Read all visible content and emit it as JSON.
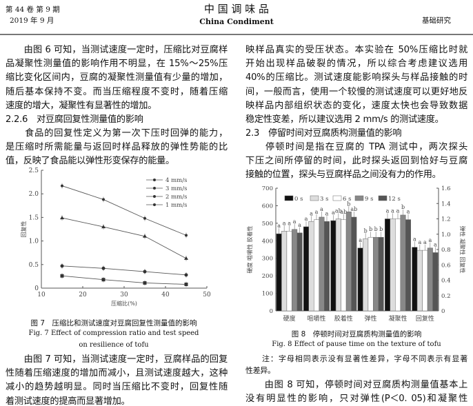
{
  "header": {
    "volume": "第 44 卷 第 9 期",
    "date": "2019 年 9 月",
    "journal_cn": "中 国 调 味 品",
    "journal_en": "China Condiment",
    "section": "基础研究"
  },
  "left": {
    "para1": [
      "　　由图 6 可知，当测试速度一定时，压缩比对豆腐样",
      "品凝聚性测量值的影响作用不明显，在 15%～25%压",
      "缩比变化区间内，豆腐的凝聚性测量值有少量的增加，",
      "随后基本保持不变。而当压缩程度不变时，随着压缩",
      "速度的增大，凝聚性有显著性的增加。"
    ],
    "heading": "2.2.6　对豆腐回复性测量值的影响",
    "para2": [
      "　　食品的回复性定义为第一次下压时回弹的能力，",
      "是压缩时所需能量与返回时样品释放的弹性势能的比",
      "值，反映了食品能以弹性形变保存的能量。"
    ],
    "fig_cn": "图 7　压缩比和测试速度对豆腐回复性测量值的影响",
    "fig_en": [
      "Fig. 7 Effect of compression ratio and test speed",
      "on resilience of tofu"
    ],
    "para3": [
      "　　由图 7 可知，当测试速度一定时，豆腐样品的回复",
      "性随着压缩速度的增加而减小，且测试速度越大，这种",
      "减小的趋势越明显。同时当压缩比不变时，回复性随",
      "着测试速度的提高而显著增加。"
    ]
  },
  "right": {
    "para1": [
      "映样品真实的受压状态。本实验在 50%压缩比时就",
      "开始出现样品破裂的情况，所以综合考虑建议选用",
      "40%的压缩比。测试速度能影响探头与样品接触的时",
      "间，一般而言，使用一个较慢的测试速度可以更好地反",
      "映样品内部组织状态的变化，速度太快也会导致数据",
      "稳定性变差，所以建议选用 2 mm/s 的测试速度。"
    ],
    "heading": "2.3　停留时间对豆腐质构测量值的影响",
    "para2": [
      "　　停顿时间是指在豆腐的 TPA 测试中，两次探头",
      "下压之间所停留的时间，此时探头返回到恰好与豆腐",
      "接触的位置，探头与豆腐样品之间没有力的作用。"
    ],
    "fig_cn": "图 8　停顿时间对豆腐质构测量值的影响",
    "fig_en": "Fig. 8 Effect of pause time on the texture of tofu",
    "note": [
      "　　注：字母相同表示没有显著性差异，字母不同表示有显著",
      "性差异。"
    ],
    "para3": [
      "　　由图 8 可知，停顿时间对豆腐质构测量值基本上",
      "没有明显性的影响，只对弹性(P＜0. 05)和凝聚性"
    ]
  },
  "chart_data": [
    {
      "type": "line",
      "xlabel": "压缩比(%)",
      "ylabel": "回复性",
      "xlim": [
        10,
        50
      ],
      "ylim": [
        0,
        2.5
      ],
      "xticks": [
        "10",
        "20",
        "30",
        "40",
        "50"
      ],
      "yticks": [
        "0",
        "0.5",
        "1.0",
        "1.5",
        "2.0",
        "2.5"
      ],
      "legend": "top-right",
      "x": [
        15,
        25,
        35,
        45
      ],
      "series": [
        {
          "name": "4 mm/s",
          "marker": "star",
          "values": [
            2.17,
            1.88,
            1.48,
            1.12
          ]
        },
        {
          "name": "3 mm/s",
          "marker": "triangle",
          "values": [
            1.49,
            1.3,
            1.1,
            0.63
          ]
        },
        {
          "name": "2 mm/s",
          "marker": "circle",
          "values": [
            0.47,
            0.42,
            0.35,
            0.28
          ]
        },
        {
          "name": "1 mm/s",
          "marker": "square",
          "values": [
            0.26,
            0.18,
            0.11,
            0.08
          ]
        }
      ]
    },
    {
      "type": "bar",
      "ylabel": "硬度  咀嚼性  胶着性",
      "ylabel_right": "弹性  凝聚性  回复性",
      "ylim": [
        0,
        700
      ],
      "ylim_right": [
        0,
        1.6
      ],
      "yticks": [
        "0",
        "100",
        "200",
        "300",
        "400",
        "500",
        "600",
        "700"
      ],
      "yticks_right": [
        "0",
        "0.2",
        "0.4",
        "0.6",
        "0.8",
        "1.0",
        "1.2",
        "1.4",
        "1.6"
      ],
      "categories": [
        "硬度",
        "咀嚼性",
        "胶着性",
        "弹性",
        "凝聚性",
        "回复性"
      ],
      "legend": "top",
      "series": [
        {
          "name": "0 s",
          "color": "#111111",
          "values": [
            440,
            480,
            515,
            0.82,
            1.2,
            0.83
          ]
        },
        {
          "name": "3 s",
          "color": "#dddddd",
          "values": [
            455,
            510,
            525,
            0.94,
            1.2,
            0.79
          ]
        },
        {
          "name": "6 s",
          "color": "#ffffff",
          "values": [
            455,
            520,
            520,
            0.96,
            1.2,
            0.79
          ]
        },
        {
          "name": "9 s",
          "color": "#888888",
          "values": [
            465,
            535,
            565,
            0.96,
            1.25,
            0.82
          ]
        },
        {
          "name": "12 s",
          "color": "#555555",
          "values": [
            445,
            510,
            535,
            0.96,
            1.19,
            0.76
          ]
        }
      ],
      "right_axis_categories": [
        "弹性",
        "凝聚性",
        "回复性"
      ],
      "letters": [
        [
          "a",
          "a",
          "a",
          "a",
          "a"
        ],
        [
          "a",
          "a",
          "a",
          "a",
          "a"
        ],
        [
          "a",
          "ab",
          "ab",
          "b",
          "ab"
        ],
        [
          "a",
          "b",
          "b",
          "b",
          "b"
        ],
        [
          "a",
          "a",
          "a",
          "b",
          "a"
        ],
        [
          "a",
          "a",
          "a",
          "a",
          "a"
        ]
      ]
    }
  ]
}
